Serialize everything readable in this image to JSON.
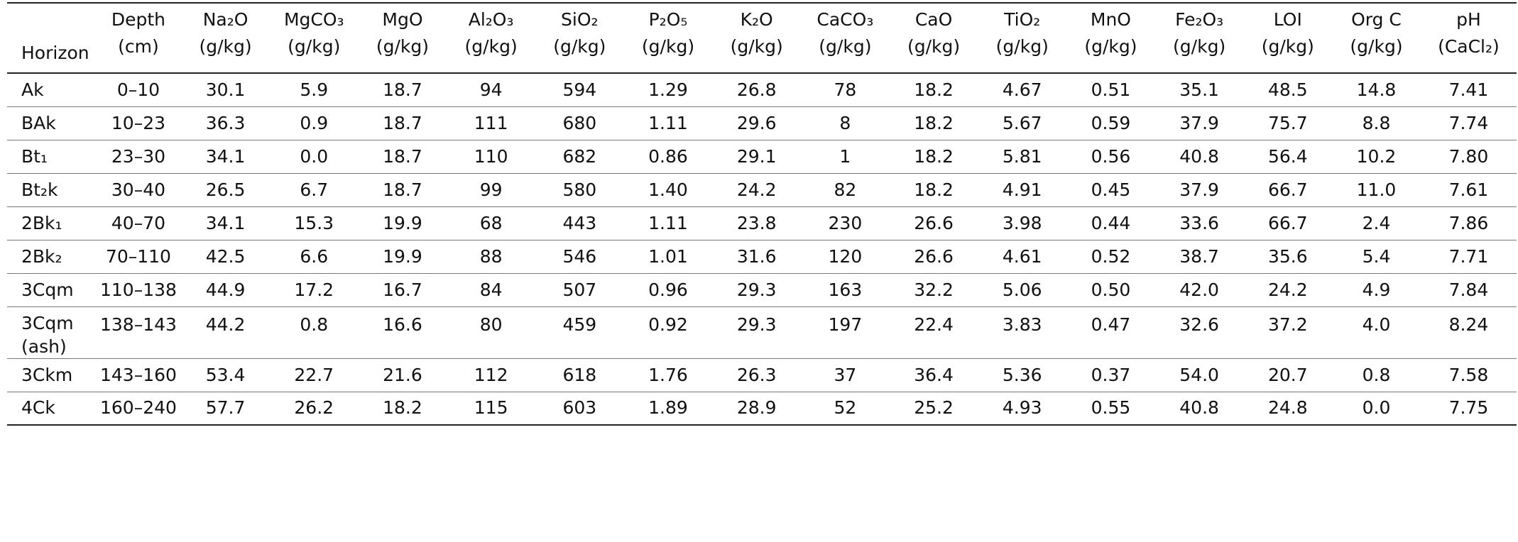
{
  "table": {
    "headers": [
      {
        "key": "horizon",
        "line1": "",
        "line2": "Horizon"
      },
      {
        "key": "depth",
        "line1": "Depth",
        "line2": "(cm)"
      },
      {
        "key": "na2o",
        "line1": "Na₂O",
        "line2": "(g/kg)"
      },
      {
        "key": "mgco3",
        "line1": "MgCO₃",
        "line2": "(g/kg)"
      },
      {
        "key": "mgo",
        "line1": "MgO",
        "line2": "(g/kg)"
      },
      {
        "key": "al2o3",
        "line1": "Al₂O₃",
        "line2": "(g/kg)"
      },
      {
        "key": "sio2",
        "line1": "SiO₂",
        "line2": "(g/kg)"
      },
      {
        "key": "p2o5",
        "line1": "P₂O₅",
        "line2": "(g/kg)"
      },
      {
        "key": "k2o",
        "line1": "K₂O",
        "line2": "(g/kg)"
      },
      {
        "key": "caco3",
        "line1": "CaCO₃",
        "line2": "(g/kg)"
      },
      {
        "key": "cao",
        "line1": "CaO",
        "line2": "(g/kg)"
      },
      {
        "key": "tio2",
        "line1": "TiO₂",
        "line2": "(g/kg)"
      },
      {
        "key": "mno",
        "line1": "MnO",
        "line2": "(g/kg)"
      },
      {
        "key": "fe2o3",
        "line1": "Fe₂O₃",
        "line2": "(g/kg)"
      },
      {
        "key": "loi",
        "line1": "LOI",
        "line2": "(g/kg)"
      },
      {
        "key": "orgc",
        "line1": "Org C",
        "line2": "(g/kg)"
      },
      {
        "key": "ph",
        "line1": "pH",
        "line2": "(CaCl₂)"
      }
    ],
    "rows": [
      {
        "horizon": "Ak",
        "cells": [
          "0–10",
          "30.1",
          "5.9",
          "18.7",
          "94",
          "594",
          "1.29",
          "26.8",
          "78",
          "18.2",
          "4.67",
          "0.51",
          "35.1",
          "48.5",
          "14.8",
          "7.41"
        ]
      },
      {
        "horizon": "BAk",
        "cells": [
          "10–23",
          "36.3",
          "0.9",
          "18.7",
          "111",
          "680",
          "1.11",
          "29.6",
          "8",
          "18.2",
          "5.67",
          "0.59",
          "37.9",
          "75.7",
          "8.8",
          "7.74"
        ]
      },
      {
        "horizon": "Bt₁",
        "cells": [
          "23–30",
          "34.1",
          "0.0",
          "18.7",
          "110",
          "682",
          "0.86",
          "29.1",
          "1",
          "18.2",
          "5.81",
          "0.56",
          "40.8",
          "56.4",
          "10.2",
          "7.80"
        ]
      },
      {
        "horizon": "Bt₂k",
        "cells": [
          "30–40",
          "26.5",
          "6.7",
          "18.7",
          "99",
          "580",
          "1.40",
          "24.2",
          "82",
          "18.2",
          "4.91",
          "0.45",
          "37.9",
          "66.7",
          "11.0",
          "7.61"
        ]
      },
      {
        "horizon": "2Bk₁",
        "cells": [
          "40–70",
          "34.1",
          "15.3",
          "19.9",
          "68",
          "443",
          "1.11",
          "23.8",
          "230",
          "26.6",
          "3.98",
          "0.44",
          "33.6",
          "66.7",
          "2.4",
          "7.86"
        ]
      },
      {
        "horizon": "2Bk₂",
        "cells": [
          "70–110",
          "42.5",
          "6.6",
          "19.9",
          "88",
          "546",
          "1.01",
          "31.6",
          "120",
          "26.6",
          "4.61",
          "0.52",
          "38.7",
          "35.6",
          "5.4",
          "7.71"
        ]
      },
      {
        "horizon": "3Cqm",
        "cells": [
          "110–138",
          "44.9",
          "17.2",
          "16.7",
          "84",
          "507",
          "0.96",
          "29.3",
          "163",
          "32.2",
          "5.06",
          "0.50",
          "42.0",
          "24.2",
          "4.9",
          "7.84"
        ]
      },
      {
        "horizon": "3Cqm (ash)",
        "cells": [
          "138–143",
          "44.2",
          "0.8",
          "16.6",
          "80",
          "459",
          "0.92",
          "29.3",
          "197",
          "22.4",
          "3.83",
          "0.47",
          "32.6",
          "37.2",
          "4.0",
          "8.24"
        ]
      },
      {
        "horizon": "3Ckm",
        "cells": [
          "143–160",
          "53.4",
          "22.7",
          "21.6",
          "112",
          "618",
          "1.76",
          "26.3",
          "37",
          "36.4",
          "5.36",
          "0.37",
          "54.0",
          "20.7",
          "0.8",
          "7.58"
        ]
      },
      {
        "horizon": "4Ck",
        "cells": [
          "160–240",
          "57.7",
          "26.2",
          "18.2",
          "115",
          "603",
          "1.89",
          "28.9",
          "52",
          "25.2",
          "4.93",
          "0.55",
          "40.8",
          "24.8",
          "0.0",
          "7.75"
        ]
      }
    ]
  }
}
